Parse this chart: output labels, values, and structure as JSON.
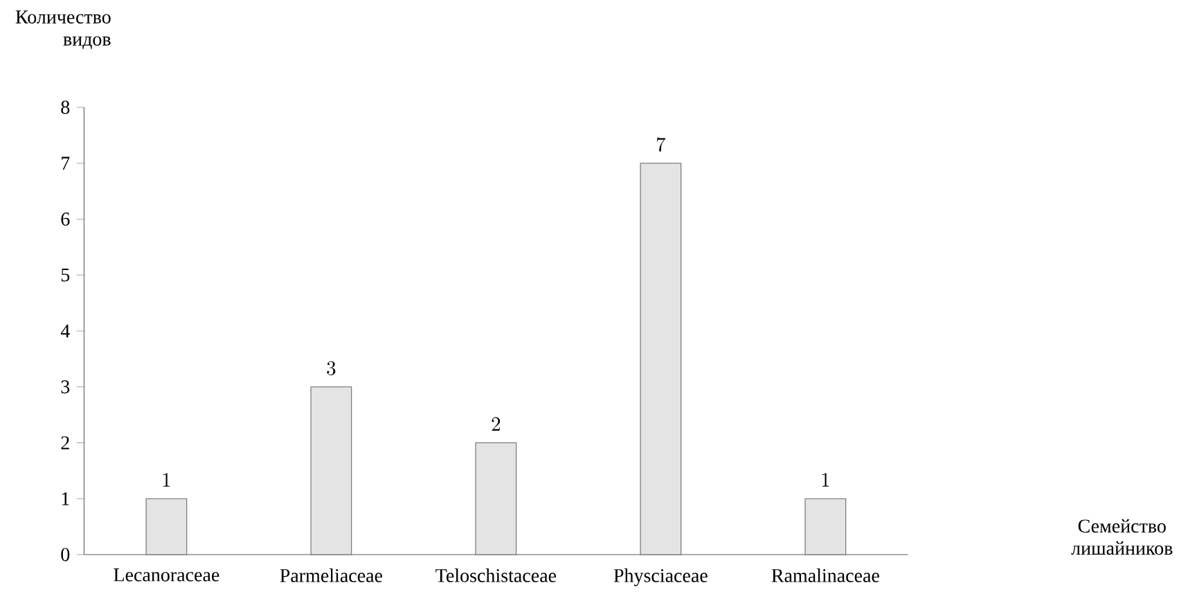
{
  "chart_data": {
    "type": "bar",
    "ylabel": "Количество видов",
    "annotations": [
      "Семейство лишайников"
    ],
    "categories": [
      "Lecanoraceae",
      "Parmeliaceae",
      "Teloschistaceae",
      "Physciaceae",
      "Ramalinaceae"
    ],
    "values": [
      1,
      3,
      2,
      7,
      1
    ],
    "color": "#e4e4e4",
    "ylim": [
      0,
      8
    ],
    "yticks": [
      0,
      1,
      2,
      3,
      4,
      5,
      6,
      7,
      8
    ],
    "data_labels": true,
    "grid": false
  }
}
